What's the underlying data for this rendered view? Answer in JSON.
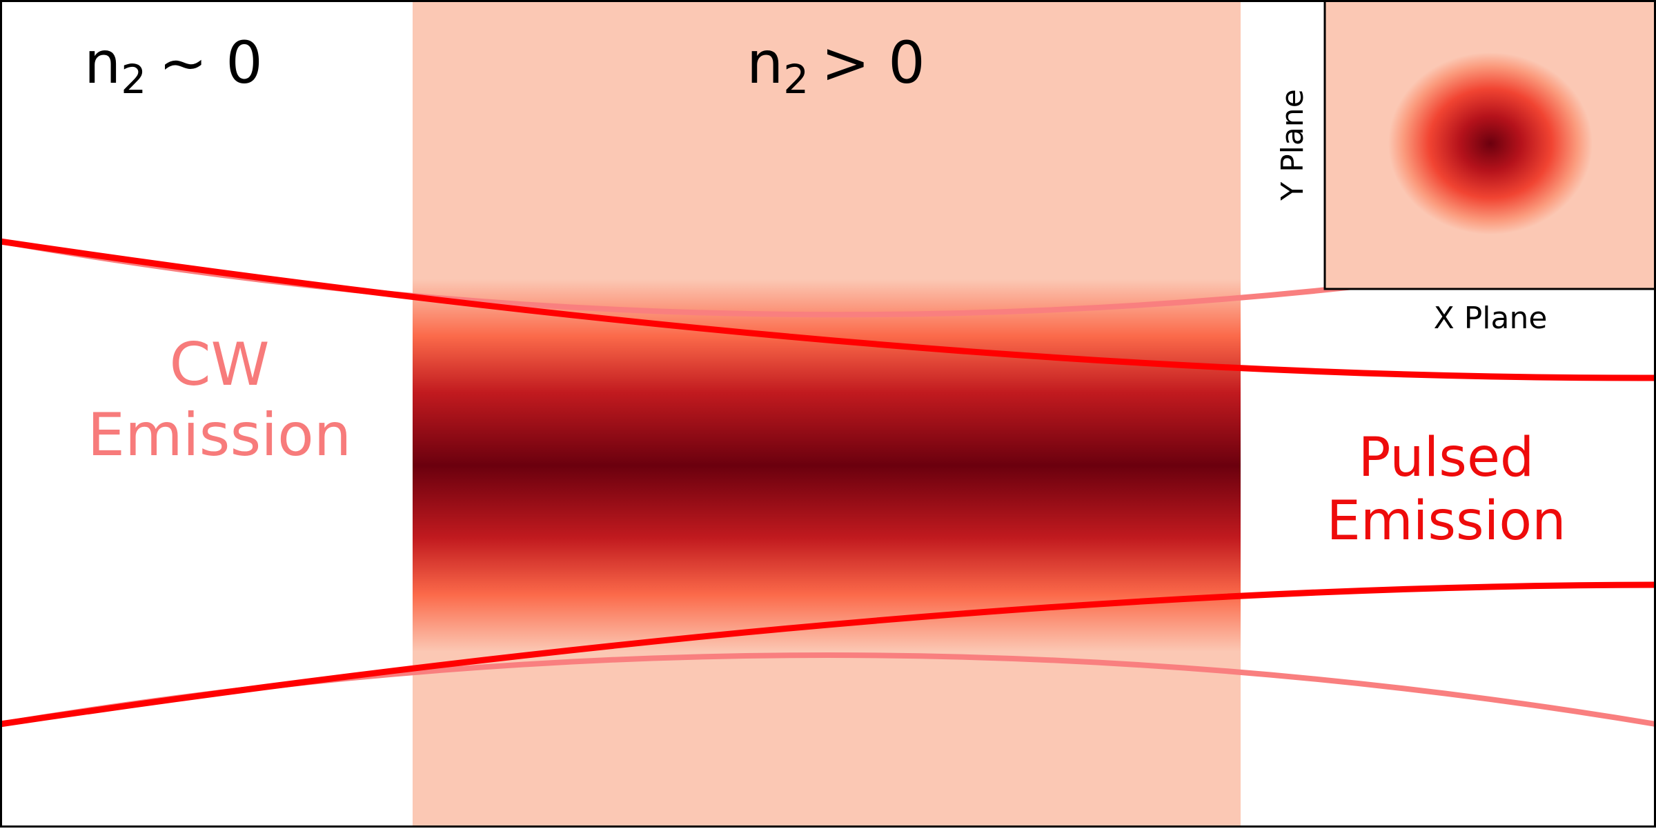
{
  "regions": {
    "left_label": {
      "base": "n",
      "sub": "2",
      "relation": "~ 0"
    },
    "center_label": {
      "base": "n",
      "sub": "2",
      "relation": "> 0"
    }
  },
  "emission": {
    "cw_line1": "CW",
    "cw_line2": "Emission",
    "pulsed_line1": "Pulsed",
    "pulsed_line2": "Emission"
  },
  "inset": {
    "y_label": "Y Plane",
    "x_label": "X Plane"
  },
  "colors": {
    "medium_fill": "#fbc8b4",
    "beam_core": "#6b000e",
    "pulsed_beam": "#ff0000",
    "cw_beam": "#f97f7f",
    "cw_text": "#f77b7b",
    "pulsed_text": "#ee0b0b"
  }
}
